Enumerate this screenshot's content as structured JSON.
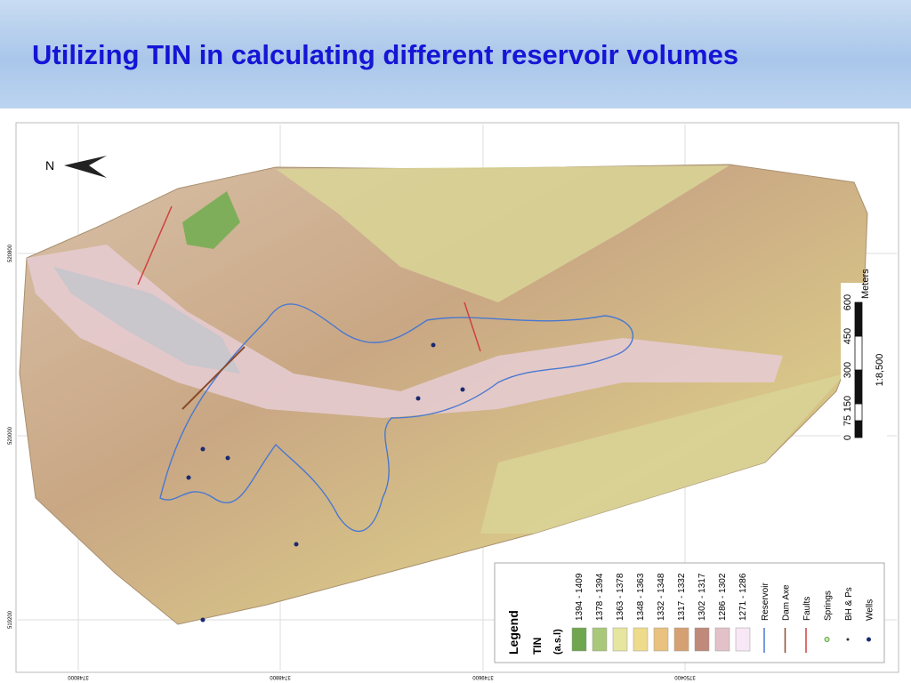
{
  "header": {
    "title": "Utilizing TIN in calculating different reservoir volumes"
  },
  "map": {
    "north": "N",
    "coordinates_left": [
      "520800",
      "520000",
      "519200"
    ],
    "coordinates_bottom": [
      "3748000",
      "3748800",
      "3749600",
      "3750400"
    ],
    "scale": {
      "unit": "Meters",
      "ratio": "1:8,500",
      "ticks": [
        "0",
        "75",
        "150",
        "300",
        "450",
        "600"
      ]
    },
    "legend": {
      "title": "Legend",
      "layer": "TIN",
      "subtitle": "(a.s.l)",
      "classes": [
        {
          "label": "1394 - 1409",
          "color": "#6fa64e"
        },
        {
          "label": "1378 - 1394",
          "color": "#a9c879"
        },
        {
          "label": "1363 - 1378",
          "color": "#e6e6a0"
        },
        {
          "label": "1348 - 1363",
          "color": "#eedc8c"
        },
        {
          "label": "1332 - 1348",
          "color": "#e8c27e"
        },
        {
          "label": "1317 - 1332",
          "color": "#d6a172"
        },
        {
          "label": "1302 - 1317",
          "color": "#bf8a7a"
        },
        {
          "label": "1286 - 1302",
          "color": "#e2c2c8"
        },
        {
          "label": "1271 - 1286",
          "color": "#f8e8f6"
        }
      ],
      "symbols": [
        {
          "label": "Reservoir",
          "color": "#4a78d0"
        },
        {
          "label": "Dam Axe",
          "color": "#8a4a2a"
        },
        {
          "label": "Faults",
          "color": "#d04040"
        },
        {
          "label": "Springs",
          "color": "#58a040"
        },
        {
          "label": "BH & Ps",
          "color": "#303030"
        },
        {
          "label": "Wells",
          "color": "#1a2a70"
        }
      ]
    }
  }
}
